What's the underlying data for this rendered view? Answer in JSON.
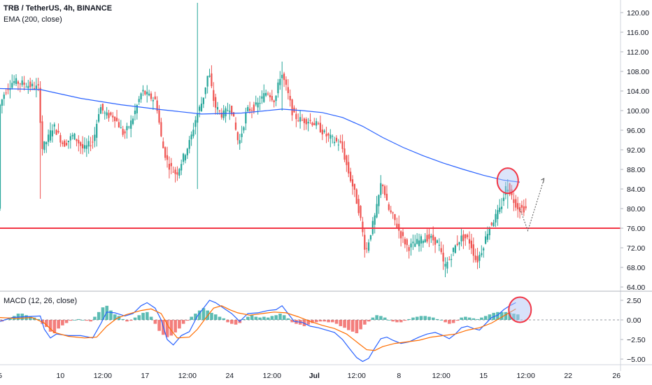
{
  "header": {
    "title": "TRB / TetherUS, 4h, BINANCE",
    "ema_label": "EMA (200, close)",
    "macd_label": "MACD (12, 26, close)"
  },
  "colors": {
    "up": "#26a69a",
    "down": "#ef5350",
    "ema": "#2962ff",
    "macd_line": "#2962ff",
    "signal_line": "#ff6d00",
    "support": "#f23645",
    "highlight_fill": "#b2c6f5",
    "highlight_stroke": "#f23645",
    "arrow": "#555555"
  },
  "chart_data": [
    {
      "type": "candlestick",
      "title": "TRB / TetherUS, 4h, BINANCE",
      "y_ticks": [
        "120.00",
        "116.00",
        "112.00",
        "108.00",
        "104.00",
        "100.00",
        "96.00",
        "92.00",
        "88.00",
        "84.00",
        "80.00",
        "76.00",
        "72.00",
        "68.00",
        "64.00"
      ],
      "ylim": [
        64,
        122
      ],
      "x_ticks": [
        {
          "label": "5",
          "t": 0
        },
        {
          "label": "10",
          "t": 30
        },
        {
          "label": "12:00",
          "t": 51
        },
        {
          "label": "17",
          "t": 72
        },
        {
          "label": "12:00",
          "t": 93
        },
        {
          "label": "24",
          "t": 114
        },
        {
          "label": "12:00",
          "t": 135
        },
        {
          "label": "Jul",
          "t": 156,
          "bold": true
        },
        {
          "label": "12:00",
          "t": 177
        },
        {
          "label": "8",
          "t": 198
        },
        {
          "label": "12:00",
          "t": 219
        },
        {
          "label": "15",
          "t": 240
        },
        {
          "label": "12:00",
          "t": 261
        },
        {
          "label": "22",
          "t": 282
        },
        {
          "label": "26",
          "t": 306
        }
      ],
      "price_path": [
        [
          0,
          100.5
        ],
        [
          3,
          104
        ],
        [
          7,
          106
        ],
        [
          12,
          105.5
        ],
        [
          16,
          105
        ],
        [
          20,
          104.5
        ],
        [
          21,
          92
        ],
        [
          24,
          94
        ],
        [
          27,
          97
        ],
        [
          32,
          93
        ],
        [
          37,
          95
        ],
        [
          42,
          92
        ],
        [
          47,
          94
        ],
        [
          50,
          101
        ],
        [
          53,
          99
        ],
        [
          57,
          99
        ],
        [
          62,
          95
        ],
        [
          66,
          98
        ],
        [
          71,
          104
        ],
        [
          74,
          103
        ],
        [
          78,
          102
        ],
        [
          81,
          93
        ],
        [
          84,
          89
        ],
        [
          88,
          87
        ],
        [
          91,
          90
        ],
        [
          95,
          94
        ],
        [
          98,
          99
        ],
        [
          101,
          102
        ],
        [
          104,
          108
        ],
        [
          107,
          101
        ],
        [
          111,
          99
        ],
        [
          115,
          101
        ],
        [
          119,
          93
        ],
        [
          123,
          100
        ],
        [
          128,
          101
        ],
        [
          133,
          104
        ],
        [
          137,
          102
        ],
        [
          140,
          108
        ],
        [
          143,
          104
        ],
        [
          146,
          99
        ],
        [
          150,
          98
        ],
        [
          154,
          98
        ],
        [
          158,
          97
        ],
        [
          162,
          95
        ],
        [
          166,
          94
        ],
        [
          170,
          93
        ],
        [
          173,
          88
        ],
        [
          176,
          84
        ],
        [
          179,
          79
        ],
        [
          182,
          71
        ],
        [
          185,
          76
        ],
        [
          187,
          79
        ],
        [
          190,
          86
        ],
        [
          193,
          80
        ],
        [
          196,
          78
        ],
        [
          199,
          75
        ],
        [
          203,
          72
        ],
        [
          207,
          73
        ],
        [
          211,
          74
        ],
        [
          214,
          74
        ],
        [
          218,
          73
        ],
        [
          221,
          68
        ],
        [
          224,
          70
        ],
        [
          226,
          72
        ],
        [
          229,
          74
        ],
        [
          232,
          74
        ],
        [
          234,
          73
        ],
        [
          237,
          69
        ],
        [
          240,
          72
        ],
        [
          243,
          76
        ],
        [
          246,
          78
        ],
        [
          249,
          80
        ],
        [
          252,
          85
        ],
        [
          255,
          82
        ],
        [
          258,
          80
        ],
        [
          261,
          80
        ]
      ],
      "support_level": 76,
      "ema": [
        [
          0,
          104.5
        ],
        [
          20,
          104.3
        ],
        [
          40,
          102.5
        ],
        [
          60,
          101.2
        ],
        [
          80,
          100.2
        ],
        [
          100,
          99.3
        ],
        [
          120,
          99.5
        ],
        [
          140,
          100.3
        ],
        [
          150,
          100
        ],
        [
          160,
          99.6
        ],
        [
          170,
          98.6
        ],
        [
          180,
          96.8
        ],
        [
          190,
          94.5
        ],
        [
          200,
          92.5
        ],
        [
          210,
          90.8
        ],
        [
          220,
          89.3
        ],
        [
          230,
          88
        ],
        [
          240,
          86.8
        ],
        [
          250,
          85.8
        ],
        [
          258,
          85.4
        ]
      ],
      "projection": [
        [
          258,
          80
        ],
        [
          262,
          75.5
        ],
        [
          270,
          86
        ]
      ],
      "highlight_circle": {
        "t": 252,
        "price": 85.7
      }
    },
    {
      "type": "macd",
      "title": "MACD (12, 26, close)",
      "y_ticks": [
        "2.50",
        "0.00",
        "−2.50",
        "−5.00"
      ],
      "ylim": [
        -5.8,
        3.6
      ],
      "macd_line": [
        [
          0,
          -0.2
        ],
        [
          6,
          0.3
        ],
        [
          12,
          0.4
        ],
        [
          20,
          0.5
        ],
        [
          22,
          -1.2
        ],
        [
          25,
          -2.3
        ],
        [
          28,
          -1.8
        ],
        [
          34,
          -2.0
        ],
        [
          40,
          -2.0
        ],
        [
          46,
          -2.3
        ],
        [
          50,
          -0.5
        ],
        [
          53,
          1.0
        ],
        [
          57,
          0.9
        ],
        [
          62,
          0.5
        ],
        [
          66,
          0.8
        ],
        [
          70,
          1.8
        ],
        [
          73,
          2.2
        ],
        [
          77,
          1.5
        ],
        [
          80,
          0
        ],
        [
          83,
          -2.5
        ],
        [
          86,
          -3.2
        ],
        [
          90,
          -2.0
        ],
        [
          94,
          -1.5
        ],
        [
          98,
          0.5
        ],
        [
          101,
          1.5
        ],
        [
          104,
          2.5
        ],
        [
          107,
          2.2
        ],
        [
          111,
          1.5
        ],
        [
          115,
          0.8
        ],
        [
          119,
          -0.2
        ],
        [
          123,
          0.8
        ],
        [
          128,
          0.9
        ],
        [
          133,
          1.2
        ],
        [
          137,
          1.3
        ],
        [
          140,
          1.8
        ],
        [
          143,
          0.8
        ],
        [
          146,
          -0.2
        ],
        [
          150,
          -0.3
        ],
        [
          154,
          -0.8
        ],
        [
          158,
          -1.0
        ],
        [
          162,
          -1.3
        ],
        [
          166,
          -1.6
        ],
        [
          170,
          -2.5
        ],
        [
          173,
          -3.5
        ],
        [
          177,
          -4.8
        ],
        [
          180,
          -5.3
        ],
        [
          183,
          -4.9
        ],
        [
          186,
          -3.6
        ],
        [
          189,
          -2.4
        ],
        [
          192,
          -2.2
        ],
        [
          195,
          -2.6
        ],
        [
          199,
          -3.0
        ],
        [
          203,
          -2.8
        ],
        [
          208,
          -2.2
        ],
        [
          212,
          -1.8
        ],
        [
          216,
          -1.6
        ],
        [
          220,
          -2.0
        ],
        [
          223,
          -2.4
        ],
        [
          226,
          -1.8
        ],
        [
          229,
          -1.0
        ],
        [
          232,
          -0.8
        ],
        [
          235,
          -1.1
        ],
        [
          238,
          -1.3
        ],
        [
          241,
          -0.5
        ],
        [
          244,
          0.3
        ],
        [
          247,
          0.6
        ],
        [
          250,
          1.3
        ],
        [
          253,
          1.8
        ],
        [
          256,
          2.2
        ]
      ],
      "signal_line": [
        [
          0,
          0.3
        ],
        [
          8,
          0.2
        ],
        [
          16,
          0.3
        ],
        [
          22,
          -0.4
        ],
        [
          27,
          -1.6
        ],
        [
          34,
          -2.1
        ],
        [
          42,
          -2.3
        ],
        [
          48,
          -2.2
        ],
        [
          53,
          -0.8
        ],
        [
          58,
          0.2
        ],
        [
          63,
          0.7
        ],
        [
          70,
          1.2
        ],
        [
          75,
          1.4
        ],
        [
          80,
          0.8
        ],
        [
          84,
          -1.0
        ],
        [
          88,
          -2.3
        ],
        [
          94,
          -2.2
        ],
        [
          98,
          -1.2
        ],
        [
          102,
          0.2
        ],
        [
          106,
          1.5
        ],
        [
          110,
          1.8
        ],
        [
          114,
          1.3
        ],
        [
          118,
          0.9
        ],
        [
          124,
          0.6
        ],
        [
          130,
          0.8
        ],
        [
          136,
          1.0
        ],
        [
          142,
          0.9
        ],
        [
          148,
          0.4
        ],
        [
          154,
          -0.2
        ],
        [
          160,
          -0.7
        ],
        [
          166,
          -1.1
        ],
        [
          172,
          -1.8
        ],
        [
          178,
          -3.0
        ],
        [
          182,
          -3.8
        ],
        [
          186,
          -3.9
        ],
        [
          190,
          -3.4
        ],
        [
          196,
          -3.0
        ],
        [
          202,
          -2.8
        ],
        [
          208,
          -2.6
        ],
        [
          214,
          -2.2
        ],
        [
          220,
          -2.0
        ],
        [
          226,
          -1.8
        ],
        [
          232,
          -1.3
        ],
        [
          238,
          -1.0
        ],
        [
          244,
          -0.4
        ],
        [
          250,
          0.5
        ],
        [
          256,
          1.4
        ]
      ],
      "histogram": [
        [
          1,
          -0.2
        ],
        [
          3,
          0.1
        ],
        [
          5,
          0.3
        ],
        [
          7,
          0.5
        ],
        [
          9,
          0.8
        ],
        [
          11,
          0.8
        ],
        [
          13,
          0.6
        ],
        [
          15,
          0.4
        ],
        [
          17,
          0.3
        ],
        [
          19,
          0.1
        ],
        [
          21,
          -0.5
        ],
        [
          23,
          -0.9
        ],
        [
          25,
          -1.5
        ],
        [
          27,
          -1.7
        ],
        [
          29,
          -1.1
        ],
        [
          31,
          -0.7
        ],
        [
          33,
          -0.4
        ],
        [
          35,
          -0.1
        ],
        [
          37,
          0.0
        ],
        [
          39,
          0.1
        ],
        [
          41,
          0.0
        ],
        [
          43,
          -0.1
        ],
        [
          45,
          -0.2
        ],
        [
          47,
          0.4
        ],
        [
          49,
          1.0
        ],
        [
          51,
          1.6
        ],
        [
          53,
          1.8
        ],
        [
          55,
          1.2
        ],
        [
          57,
          0.7
        ],
        [
          59,
          0.5
        ],
        [
          61,
          0.1
        ],
        [
          63,
          -0.2
        ],
        [
          65,
          -0.1
        ],
        [
          67,
          0.3
        ],
        [
          69,
          0.6
        ],
        [
          71,
          0.9
        ],
        [
          73,
          1.0
        ],
        [
          75,
          0.4
        ],
        [
          77,
          -0.5
        ],
        [
          79,
          -1.4
        ],
        [
          81,
          -1.9
        ],
        [
          83,
          -2.2
        ],
        [
          85,
          -2.0
        ],
        [
          87,
          -1.6
        ],
        [
          89,
          -1.1
        ],
        [
          91,
          -0.5
        ],
        [
          93,
          -0.1
        ],
        [
          95,
          0.4
        ],
        [
          97,
          0.8
        ],
        [
          99,
          1.2
        ],
        [
          101,
          1.5
        ],
        [
          103,
          1.2
        ],
        [
          105,
          0.9
        ],
        [
          107,
          0.7
        ],
        [
          109,
          0.4
        ],
        [
          111,
          0.2
        ],
        [
          113,
          -0.3
        ],
        [
          115,
          -0.5
        ],
        [
          117,
          -0.6
        ],
        [
          119,
          -0.4
        ],
        [
          121,
          0.1
        ],
        [
          123,
          0.4
        ],
        [
          125,
          0.6
        ],
        [
          127,
          0.4
        ],
        [
          129,
          0.3
        ],
        [
          131,
          0.4
        ],
        [
          133,
          0.3
        ],
        [
          135,
          0.5
        ],
        [
          137,
          0.6
        ],
        [
          139,
          0.8
        ],
        [
          141,
          0.6
        ],
        [
          143,
          0.2
        ],
        [
          145,
          -0.3
        ],
        [
          147,
          -0.5
        ],
        [
          149,
          -0.6
        ],
        [
          151,
          -0.8
        ],
        [
          153,
          -0.6
        ],
        [
          155,
          -0.4
        ],
        [
          157,
          -0.3
        ],
        [
          159,
          -0.2
        ],
        [
          161,
          -0.2
        ],
        [
          163,
          -0.3
        ],
        [
          165,
          -0.3
        ],
        [
          167,
          -0.5
        ],
        [
          169,
          -0.8
        ],
        [
          171,
          -1.0
        ],
        [
          173,
          -1.3
        ],
        [
          175,
          -1.5
        ],
        [
          177,
          -1.7
        ],
        [
          179,
          -1.2
        ],
        [
          181,
          -0.6
        ],
        [
          183,
          -0.2
        ],
        [
          185,
          0.3
        ],
        [
          187,
          0.6
        ],
        [
          189,
          0.5
        ],
        [
          191,
          0.3
        ],
        [
          193,
          0.0
        ],
        [
          195,
          -0.2
        ],
        [
          197,
          -0.3
        ],
        [
          199,
          -0.3
        ],
        [
          201,
          -0.1
        ],
        [
          203,
          0.1
        ],
        [
          205,
          0.3
        ],
        [
          207,
          0.4
        ],
        [
          209,
          0.5
        ],
        [
          211,
          0.5
        ],
        [
          213,
          0.4
        ],
        [
          215,
          0.3
        ],
        [
          217,
          0.1
        ],
        [
          219,
          0.0
        ],
        [
          221,
          -0.3
        ],
        [
          223,
          -0.5
        ],
        [
          225,
          -0.4
        ],
        [
          227,
          -0.1
        ],
        [
          229,
          0.3
        ],
        [
          231,
          0.4
        ],
        [
          233,
          0.3
        ],
        [
          235,
          0.2
        ],
        [
          237,
          0.1
        ],
        [
          239,
          0.3
        ],
        [
          241,
          0.5
        ],
        [
          243,
          0.7
        ],
        [
          245,
          0.9
        ],
        [
          247,
          1.0
        ],
        [
          249,
          1.0
        ],
        [
          251,
          1.0
        ],
        [
          253,
          0.9
        ],
        [
          255,
          0.8
        ],
        [
          257,
          0.7
        ]
      ],
      "highlight_circle": {
        "t": 256,
        "value": 1.3
      }
    }
  ]
}
